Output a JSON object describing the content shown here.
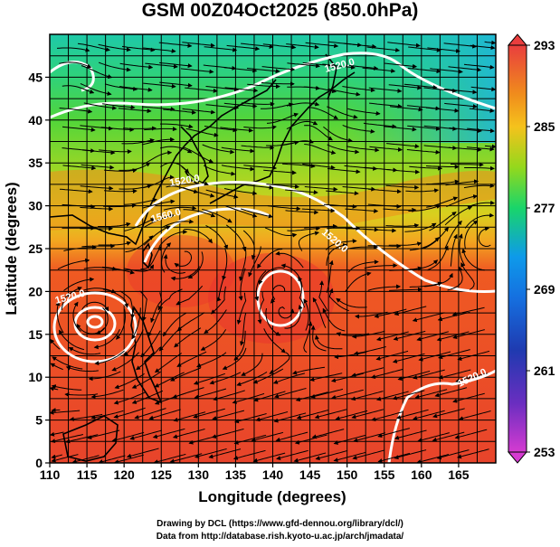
{
  "title": "GSM 00Z04Oct2025 (850.0hPa)",
  "xaxis": {
    "label": "Longitude (degrees)",
    "ticks": [
      "110",
      "115",
      "120",
      "125",
      "130",
      "135",
      "140",
      "145",
      "150",
      "155",
      "160",
      "165"
    ],
    "range": [
      110,
      170
    ]
  },
  "yaxis": {
    "label": "Latitude  (degrees)",
    "ticks": [
      "0",
      "5",
      "10",
      "15",
      "20",
      "25",
      "30",
      "35",
      "40",
      "45"
    ],
    "range": [
      0,
      50
    ]
  },
  "colorbar": {
    "ticks": [
      "293",
      "285",
      "277",
      "269",
      "261",
      "253"
    ],
    "range": [
      253,
      293
    ],
    "colors": [
      "#d53bd1",
      "#1f3ab0",
      "#0e9aea",
      "#19d56a",
      "#94d81c",
      "#f5c21c",
      "#f08c1c",
      "#e5452a",
      "#e93e3e"
    ]
  },
  "contours": {
    "labels": [
      "1520.0",
      "1520.0",
      "1560.0",
      "1520.0",
      "1520.0",
      "1520.0"
    ],
    "color": "#ffffff"
  },
  "credits": {
    "line1": "Drawing by DCL (https://www.gfd-dennou.org/library/dcl/)",
    "line2": "Data from http://database.rish.kyoto-u.ac.jp/arch/jmadata/"
  }
}
